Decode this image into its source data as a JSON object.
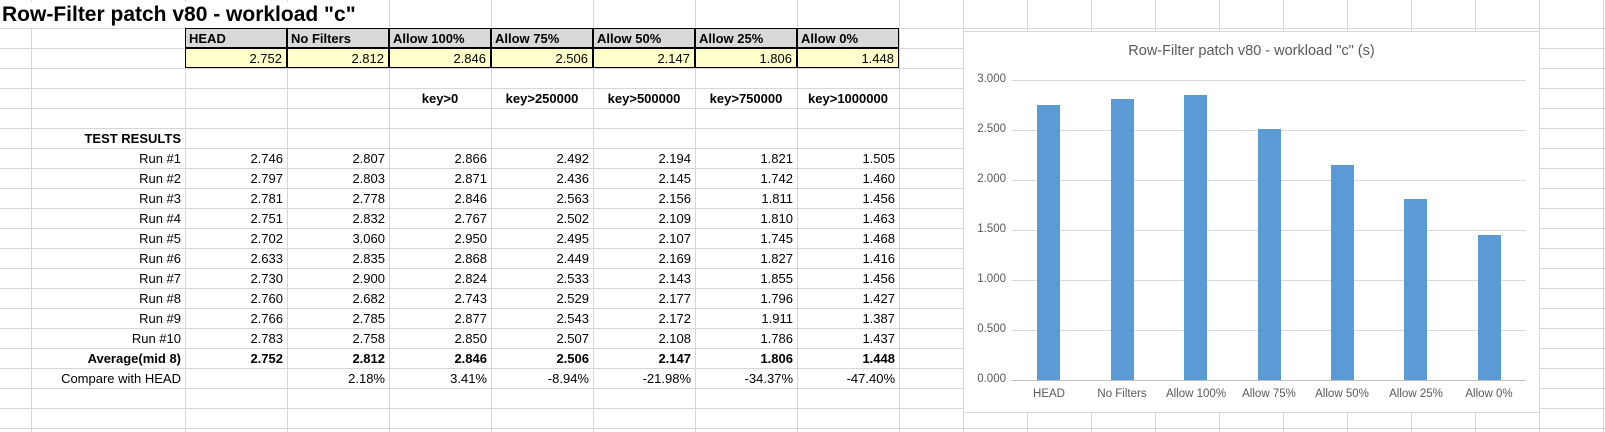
{
  "sheet": {
    "title": "Row-Filter patch v80 - workload \"c\"",
    "columns": [
      "HEAD",
      "No Filters",
      "Allow 100%",
      "Allow 75%",
      "Allow 50%",
      "Allow 25%",
      "Allow 0%"
    ],
    "summary_values": [
      "2.752",
      "2.812",
      "2.846",
      "2.506",
      "2.147",
      "1.806",
      "1.448"
    ],
    "filter_keys": [
      "",
      "",
      "key>0",
      "key>250000",
      "key>500000",
      "key>750000",
      "key>1000000"
    ],
    "section_label": "TEST RESULTS",
    "rows": [
      {
        "label": "Run #1",
        "bold": false,
        "values": [
          "2.746",
          "2.807",
          "2.866",
          "2.492",
          "2.194",
          "1.821",
          "1.505"
        ]
      },
      {
        "label": "Run #2",
        "bold": false,
        "values": [
          "2.797",
          "2.803",
          "2.871",
          "2.436",
          "2.145",
          "1.742",
          "1.460"
        ]
      },
      {
        "label": "Run #3",
        "bold": false,
        "values": [
          "2.781",
          "2.778",
          "2.846",
          "2.563",
          "2.156",
          "1.811",
          "1.456"
        ]
      },
      {
        "label": "Run #4",
        "bold": false,
        "values": [
          "2.751",
          "2.832",
          "2.767",
          "2.502",
          "2.109",
          "1.810",
          "1.463"
        ]
      },
      {
        "label": "Run #5",
        "bold": false,
        "values": [
          "2.702",
          "3.060",
          "2.950",
          "2.495",
          "2.107",
          "1.745",
          "1.468"
        ]
      },
      {
        "label": "Run #6",
        "bold": false,
        "values": [
          "2.633",
          "2.835",
          "2.868",
          "2.449",
          "2.169",
          "1.827",
          "1.416"
        ]
      },
      {
        "label": "Run #7",
        "bold": false,
        "values": [
          "2.730",
          "2.900",
          "2.824",
          "2.533",
          "2.143",
          "1.855",
          "1.456"
        ]
      },
      {
        "label": "Run #8",
        "bold": false,
        "values": [
          "2.760",
          "2.682",
          "2.743",
          "2.529",
          "2.177",
          "1.796",
          "1.427"
        ]
      },
      {
        "label": "Run #9",
        "bold": false,
        "values": [
          "2.766",
          "2.785",
          "2.877",
          "2.543",
          "2.172",
          "1.911",
          "1.387"
        ]
      },
      {
        "label": "Run #10",
        "bold": false,
        "values": [
          "2.783",
          "2.758",
          "2.850",
          "2.507",
          "2.108",
          "1.786",
          "1.437"
        ]
      },
      {
        "label": "Average(mid 8)",
        "bold": true,
        "values": [
          "2.752",
          "2.812",
          "2.846",
          "2.506",
          "2.147",
          "1.806",
          "1.448"
        ]
      },
      {
        "label": "Compare with HEAD",
        "bold": false,
        "values": [
          "",
          "2.18%",
          "3.41%",
          "-8.94%",
          "-21.98%",
          "-34.37%",
          "-47.40%"
        ]
      }
    ]
  },
  "chart_data": {
    "type": "bar",
    "title": "Row-Filter patch v80 - workload \"c\" (s)",
    "categories": [
      "HEAD",
      "No Filters",
      "Allow 100%",
      "Allow 75%",
      "Allow 50%",
      "Allow 25%",
      "Allow 0%"
    ],
    "values": [
      2.752,
      2.812,
      2.846,
      2.506,
      2.147,
      1.806,
      1.448
    ],
    "xlabel": "",
    "ylabel": "",
    "ylim": [
      0,
      3.0
    ],
    "ytick_step": 0.5,
    "ytick_labels": [
      "0.000",
      "0.500",
      "1.000",
      "1.500",
      "2.000",
      "2.500",
      "3.000"
    ],
    "grid": true,
    "legend_position": "none",
    "bar_color": "#5b9bd5"
  },
  "colors": {
    "header_fill": "#d9d9d9",
    "summary_fill": "#ffffcc",
    "sheet_gridline": "#d6d6d6",
    "chart_gridline": "#d9d9d9",
    "chart_text": "#595959",
    "bar": "#5b9bd5"
  }
}
